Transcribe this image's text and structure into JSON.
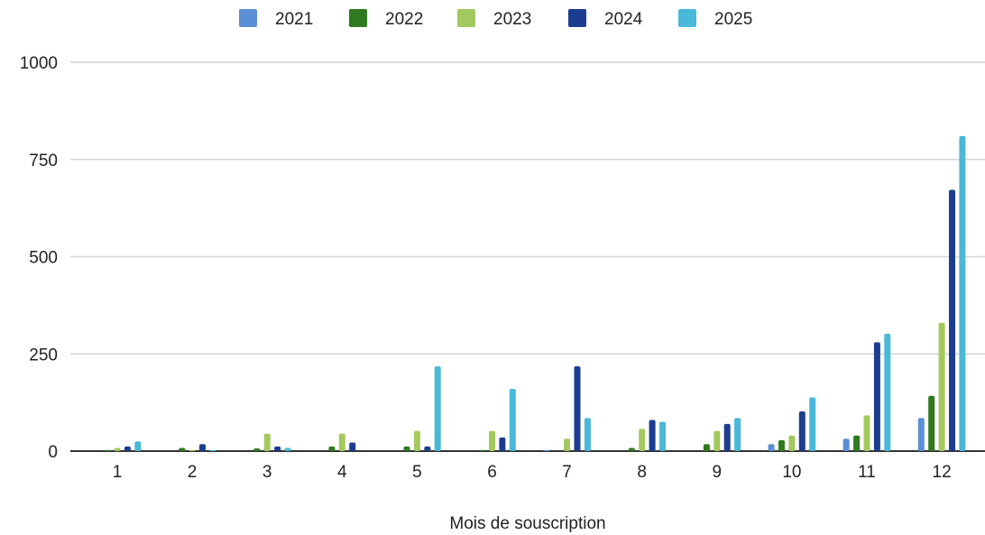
{
  "chart_data": {
    "type": "bar",
    "title": "",
    "xlabel": "Mois de souscription",
    "ylabel": "",
    "categories": [
      "1",
      "2",
      "3",
      "4",
      "5",
      "6",
      "7",
      "8",
      "9",
      "10",
      "11",
      "12"
    ],
    "series": [
      {
        "name": "2021",
        "color": "#5b8fd6",
        "values": [
          0,
          0,
          0,
          0,
          0,
          0,
          3,
          0,
          0,
          18,
          32,
          85
        ]
      },
      {
        "name": "2022",
        "color": "#2f7a1f",
        "values": [
          3,
          8,
          7,
          12,
          12,
          3,
          0,
          8,
          18,
          28,
          40,
          142
        ]
      },
      {
        "name": "2023",
        "color": "#a3c95e",
        "values": [
          8,
          3,
          45,
          45,
          52,
          52,
          32,
          57,
          52,
          40,
          92,
          330
        ]
      },
      {
        "name": "2024",
        "color": "#1c3d8f",
        "values": [
          12,
          18,
          12,
          22,
          12,
          35,
          218,
          80,
          70,
          102,
          280,
          672
        ]
      },
      {
        "name": "2025",
        "color": "#4ab8d8",
        "values": [
          25,
          3,
          8,
          0,
          218,
          160,
          85,
          75,
          85,
          138,
          302,
          810
        ]
      }
    ],
    "ylim": [
      0,
      1000
    ],
    "yticks": [
      "0",
      "250",
      "500",
      "750",
      "1000"
    ],
    "grid": true,
    "legend_position": "top-center"
  }
}
